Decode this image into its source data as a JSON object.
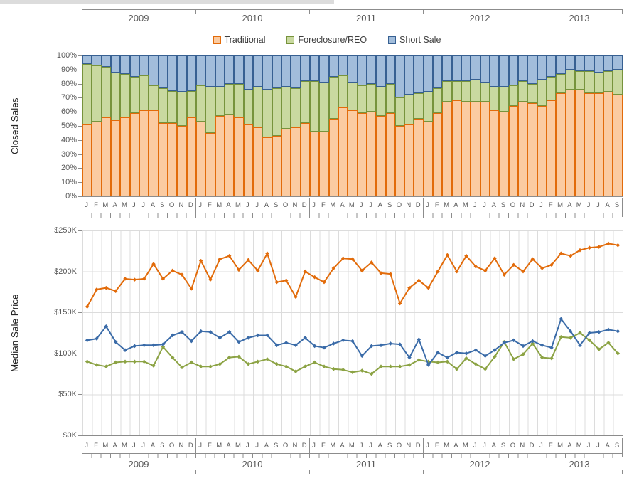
{
  "page": {
    "title_strip_color": "#dcdcdc",
    "background": "#ffffff"
  },
  "colors": {
    "text": "#595959",
    "legend_text": "#3f3f3f",
    "axis": "#8c8c8c",
    "grid": "#dcdcdc",
    "bar_traditional_fill": "#fbcba1",
    "bar_traditional_stroke": "#e26b0a",
    "bar_foreclosure_fill": "#c9d9a0",
    "bar_foreclosure_stroke": "#77933c",
    "bar_shortsale_fill": "#a2bddb",
    "bar_shortsale_stroke": "#376092",
    "line_traditional": "#e26b0a",
    "line_foreclosure": "#8ca344",
    "line_shortsale": "#3a6ba8"
  },
  "legend": {
    "items": [
      {
        "label": "Traditional",
        "fill": "#fbcba1",
        "stroke": "#e26b0a"
      },
      {
        "label": "Foreclosure/REO",
        "fill": "#c9d9a0",
        "stroke": "#77933c"
      },
      {
        "label": "Short Sale",
        "fill": "#a2bddb",
        "stroke": "#376092"
      }
    ]
  },
  "x_axis": {
    "years": [
      "2009",
      "2010",
      "2011",
      "2012",
      "2013"
    ],
    "months_per_year": [
      12,
      12,
      12,
      12,
      9
    ],
    "month_letters": "JFMAMJJASOND",
    "start": "2009-01",
    "end": "2013-09",
    "n_points": 57
  },
  "chart_data": [
    {
      "type": "bar",
      "stacked": true,
      "units": "percent_of_closed_sales",
      "title": "Closed Sales",
      "ylabel": "Closed Sales",
      "y_ticks": [
        "100%",
        "90%",
        "80%",
        "70%",
        "60%",
        "50%",
        "40%",
        "30%",
        "20%",
        "10%",
        "0%"
      ],
      "ylim": [
        0,
        100
      ],
      "grid": "horizontal",
      "legend_position": "top-center",
      "series": [
        {
          "name": "Traditional",
          "values": [
            51,
            53,
            56,
            54,
            56,
            59,
            61,
            61,
            52,
            52,
            50,
            56,
            53,
            45,
            57,
            58,
            56,
            51,
            49,
            42,
            43,
            48,
            49,
            52,
            46,
            46,
            55,
            63,
            61,
            59,
            60,
            57,
            59,
            50,
            51,
            55,
            53,
            59,
            67,
            68,
            67,
            67,
            67,
            61,
            60,
            64,
            67,
            66,
            64,
            68,
            73,
            76,
            76,
            73,
            73,
            74,
            72
          ]
        },
        {
          "name": "Foreclosure/REO",
          "values": [
            43,
            40,
            36,
            34,
            31,
            26,
            25,
            18,
            25,
            23,
            24,
            19,
            26,
            33,
            21,
            22,
            24,
            25,
            29,
            34,
            34,
            30,
            28,
            30,
            36,
            35,
            30,
            23,
            20,
            20,
            20,
            21,
            21,
            20,
            21,
            18,
            21,
            18,
            15,
            14,
            15,
            16,
            14,
            17,
            18,
            15,
            15,
            14,
            19,
            17,
            14,
            14,
            13,
            16,
            15,
            15,
            18
          ]
        },
        {
          "name": "Short Sale",
          "values": [
            6,
            7,
            8,
            12,
            13,
            15,
            14,
            21,
            23,
            25,
            26,
            25,
            21,
            22,
            22,
            20,
            20,
            24,
            22,
            24,
            23,
            22,
            23,
            18,
            18,
            19,
            15,
            14,
            19,
            21,
            20,
            22,
            20,
            30,
            28,
            27,
            26,
            23,
            18,
            18,
            18,
            17,
            19,
            22,
            22,
            21,
            18,
            20,
            17,
            15,
            13,
            10,
            11,
            11,
            12,
            11,
            10
          ]
        }
      ]
    },
    {
      "type": "line",
      "units": "thousand_dollars",
      "title": "Median Sale Price",
      "ylabel": "Median Sale Price",
      "y_ticks": [
        "$250K",
        "$200K",
        "$150K",
        "$100K",
        "$50K",
        "$0K"
      ],
      "ylim": [
        0,
        250
      ],
      "grid": "both",
      "marker": "diamond",
      "series": [
        {
          "name": "Traditional",
          "values": [
            157,
            178,
            180,
            176,
            191,
            190,
            191,
            209,
            191,
            201,
            196,
            179,
            213,
            190,
            215,
            219,
            202,
            214,
            201,
            222,
            187,
            189,
            169,
            200,
            193,
            187,
            204,
            216,
            215,
            201,
            211,
            198,
            197,
            161,
            180,
            189,
            180,
            200,
            220,
            200,
            219,
            206,
            201,
            216,
            196,
            208,
            200,
            215,
            204,
            208,
            222,
            219,
            226,
            229,
            230,
            234,
            232
          ]
        },
        {
          "name": "Foreclosure/REO",
          "values": [
            90,
            86,
            84,
            89,
            90,
            90,
            90,
            85,
            108,
            95,
            83,
            89,
            84,
            84,
            87,
            95,
            96,
            87,
            90,
            93,
            87,
            84,
            78,
            84,
            89,
            84,
            81,
            80,
            77,
            79,
            75,
            84,
            84,
            84,
            86,
            92,
            90,
            89,
            90,
            81,
            94,
            87,
            81,
            96,
            114,
            93,
            99,
            112,
            95,
            94,
            120,
            119,
            125,
            116,
            105,
            113,
            100
          ]
        },
        {
          "name": "Short Sale",
          "values": [
            116,
            118,
            133,
            114,
            104,
            109,
            110,
            110,
            111,
            122,
            126,
            115,
            127,
            126,
            119,
            126,
            114,
            119,
            122,
            122,
            110,
            113,
            110,
            119,
            109,
            107,
            112,
            116,
            115,
            97,
            109,
            110,
            112,
            111,
            95,
            117,
            86,
            101,
            95,
            101,
            100,
            104,
            97,
            104,
            113,
            116,
            109,
            115,
            110,
            107,
            142,
            127,
            110,
            125,
            126,
            129,
            127
          ]
        }
      ]
    }
  ]
}
